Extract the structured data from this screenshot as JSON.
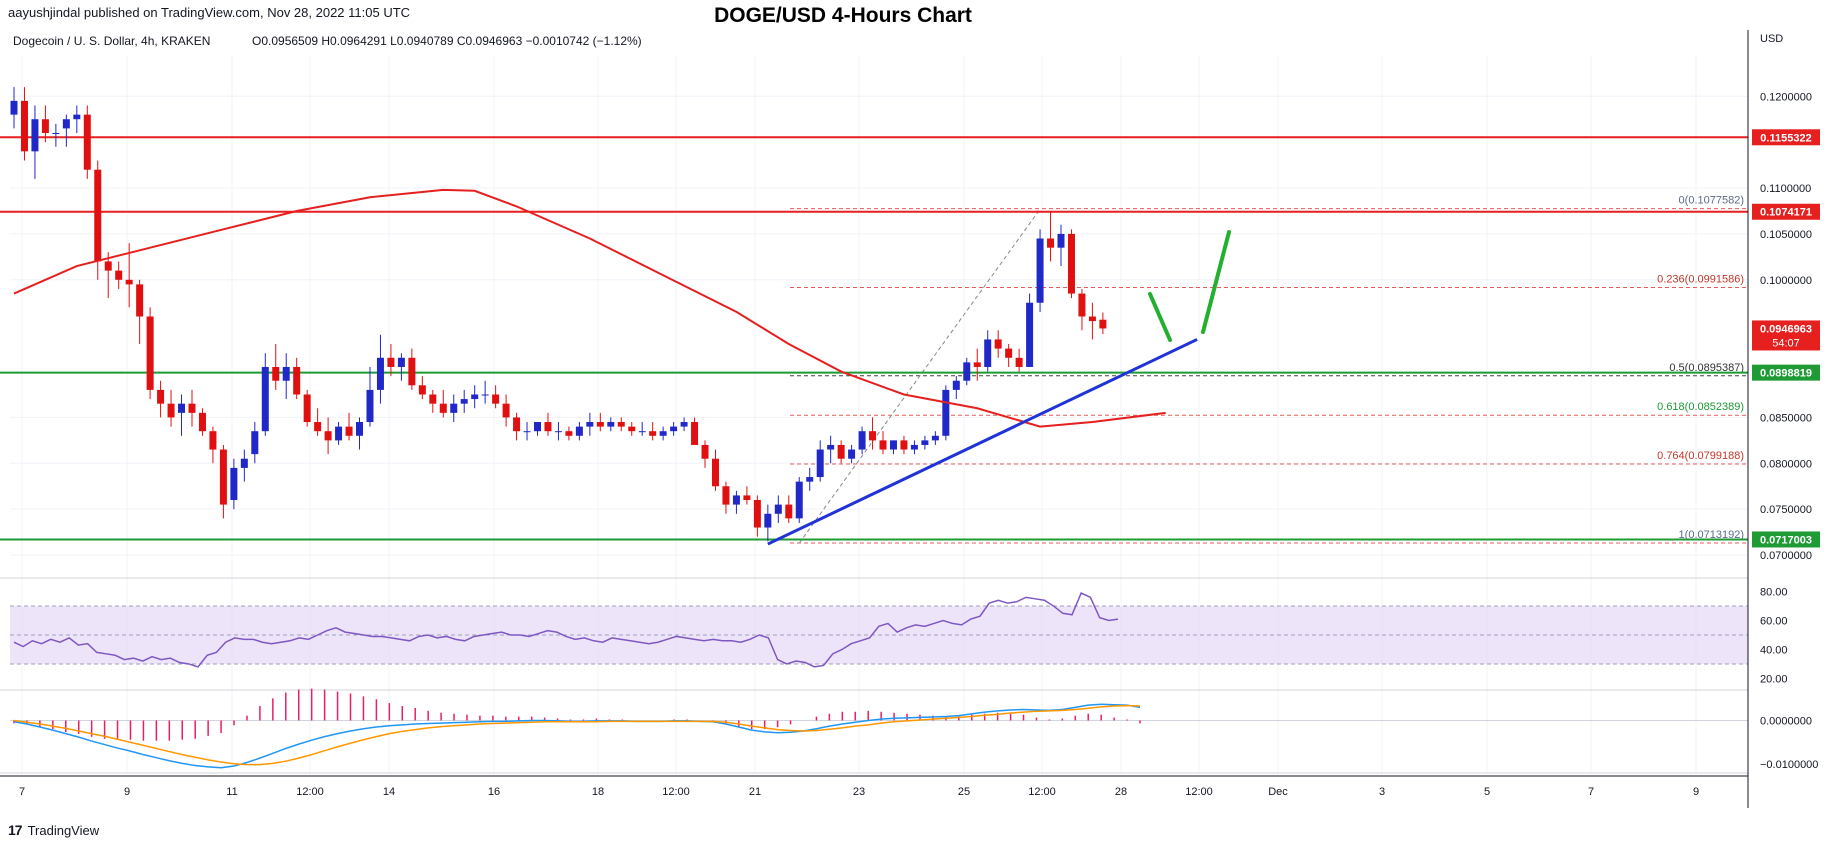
{
  "header": {
    "published_by": "aayushjindal published on TradingView.com, Nov 28, 2022 11:05 UTC",
    "chart_title": "DOGE/USD 4-Hours Chart",
    "symbol_info": "Dogecoin / U. S. Dollar, 4h, KRAKEN",
    "ohlc": "O0.0956509 H0.0964291 L0.0940789 C0.0946963 −0.0010742 (−1.12%)"
  },
  "footer": {
    "brand": "TradingView"
  },
  "colors": {
    "up": "#2028c8",
    "down": "#e01010",
    "sma": "#e61f1f",
    "trend": "#1f33d6",
    "support": "#1e9b35",
    "resistance": "#e61f1f",
    "rsi_band": "#e7d9f7",
    "rsi_line": "#7e57c2",
    "macd_line": "#2196f3",
    "signal_line": "#ff9800",
    "hist": "#e91e63",
    "label_red": "#e61f1f",
    "label_green": "#1e9b35"
  },
  "chart_data": [
    {
      "type": "candlestick",
      "currency": "USD",
      "y_ticks": [
        "0.1200000",
        "0.1100000",
        "0.1050000",
        "0.1000000",
        "0.0850000",
        "0.0800000",
        "0.0750000",
        "0.0700000"
      ],
      "ylim": [
        0.0675,
        0.1245
      ],
      "x_ticks": [
        "7",
        "9",
        "11",
        "12:00",
        "14",
        "16",
        "18",
        "12:00",
        "21",
        "23",
        "25",
        "12:00",
        "28",
        "12:00",
        "Dec",
        "3",
        "5",
        "7",
        "9"
      ],
      "candles": [
        [
          0.118,
          0.121,
          0.1165,
          0.1195
        ],
        [
          0.1195,
          0.121,
          0.113,
          0.114
        ],
        [
          0.114,
          0.119,
          0.111,
          0.1175
        ],
        [
          0.1175,
          0.119,
          0.115,
          0.116
        ],
        [
          0.116,
          0.117,
          0.1145,
          0.116
        ],
        [
          0.1165,
          0.118,
          0.1145,
          0.1175
        ],
        [
          0.1175,
          0.119,
          0.116,
          0.118
        ],
        [
          0.118,
          0.119,
          0.111,
          0.112
        ],
        [
          0.112,
          0.113,
          0.1,
          0.102
        ],
        [
          0.102,
          0.103,
          0.098,
          0.101
        ],
        [
          0.101,
          0.102,
          0.099,
          0.1
        ],
        [
          0.1,
          0.104,
          0.097,
          0.0995
        ],
        [
          0.0995,
          0.1,
          0.093,
          0.096
        ],
        [
          0.096,
          0.097,
          0.087,
          0.088
        ],
        [
          0.088,
          0.089,
          0.085,
          0.0865
        ],
        [
          0.0865,
          0.088,
          0.084,
          0.085
        ],
        [
          0.0855,
          0.0875,
          0.083,
          0.0865
        ],
        [
          0.0865,
          0.088,
          0.084,
          0.0855
        ],
        [
          0.0855,
          0.086,
          0.083,
          0.0835
        ],
        [
          0.0835,
          0.084,
          0.08,
          0.0815
        ],
        [
          0.0815,
          0.082,
          0.074,
          0.0755
        ],
        [
          0.076,
          0.0805,
          0.075,
          0.0795
        ],
        [
          0.0795,
          0.0815,
          0.078,
          0.0805
        ],
        [
          0.081,
          0.0845,
          0.08,
          0.0835
        ],
        [
          0.0835,
          0.092,
          0.083,
          0.0905
        ],
        [
          0.0905,
          0.093,
          0.088,
          0.089
        ],
        [
          0.089,
          0.092,
          0.087,
          0.0905
        ],
        [
          0.0905,
          0.0915,
          0.087,
          0.0875
        ],
        [
          0.0875,
          0.088,
          0.084,
          0.0845
        ],
        [
          0.0845,
          0.086,
          0.083,
          0.0835
        ],
        [
          0.0835,
          0.085,
          0.081,
          0.0825
        ],
        [
          0.0825,
          0.0845,
          0.082,
          0.084
        ],
        [
          0.084,
          0.0855,
          0.0825,
          0.083
        ],
        [
          0.083,
          0.085,
          0.0815,
          0.0845
        ],
        [
          0.0845,
          0.0905,
          0.084,
          0.088
        ],
        [
          0.088,
          0.094,
          0.0865,
          0.0915
        ],
        [
          0.0915,
          0.093,
          0.0895,
          0.0905
        ],
        [
          0.0905,
          0.092,
          0.089,
          0.0915
        ],
        [
          0.0915,
          0.0925,
          0.088,
          0.0885
        ],
        [
          0.0885,
          0.0895,
          0.087,
          0.0875
        ],
        [
          0.0875,
          0.088,
          0.0855,
          0.0865
        ],
        [
          0.0865,
          0.088,
          0.085,
          0.0855
        ],
        [
          0.0855,
          0.0875,
          0.0845,
          0.0865
        ],
        [
          0.0865,
          0.088,
          0.0855,
          0.087
        ],
        [
          0.087,
          0.0885,
          0.086,
          0.0875
        ],
        [
          0.0875,
          0.089,
          0.0865,
          0.0875
        ],
        [
          0.0875,
          0.0885,
          0.086,
          0.0865
        ],
        [
          0.0865,
          0.0875,
          0.084,
          0.085
        ],
        [
          0.085,
          0.0855,
          0.0825,
          0.0835
        ],
        [
          0.0835,
          0.0845,
          0.0825,
          0.0835
        ],
        [
          0.0835,
          0.0845,
          0.083,
          0.0845
        ],
        [
          0.0845,
          0.0855,
          0.083,
          0.0835
        ],
        [
          0.0835,
          0.0845,
          0.0825,
          0.0835
        ],
        [
          0.0835,
          0.084,
          0.0825,
          0.083
        ],
        [
          0.083,
          0.0845,
          0.0825,
          0.084
        ],
        [
          0.084,
          0.0855,
          0.083,
          0.0845
        ],
        [
          0.0845,
          0.0855,
          0.0835,
          0.084
        ],
        [
          0.084,
          0.085,
          0.0835,
          0.0845
        ],
        [
          0.0845,
          0.085,
          0.0835,
          0.084
        ],
        [
          0.084,
          0.0845,
          0.083,
          0.0835
        ],
        [
          0.0835,
          0.0845,
          0.083,
          0.0835
        ],
        [
          0.0835,
          0.0845,
          0.0825,
          0.083
        ],
        [
          0.083,
          0.084,
          0.0825,
          0.0835
        ],
        [
          0.0835,
          0.0845,
          0.083,
          0.084
        ],
        [
          0.084,
          0.085,
          0.0835,
          0.0845
        ],
        [
          0.0845,
          0.085,
          0.0825,
          0.082
        ],
        [
          0.082,
          0.0825,
          0.0795,
          0.0805
        ],
        [
          0.0805,
          0.0815,
          0.077,
          0.0775
        ],
        [
          0.0775,
          0.078,
          0.0745,
          0.0755
        ],
        [
          0.0755,
          0.077,
          0.0745,
          0.0765
        ],
        [
          0.0765,
          0.0775,
          0.0755,
          0.076
        ],
        [
          0.076,
          0.0765,
          0.072,
          0.073
        ],
        [
          0.073,
          0.0755,
          0.0715,
          0.0745
        ],
        [
          0.0745,
          0.0765,
          0.0735,
          0.0755
        ],
        [
          0.0755,
          0.0765,
          0.0735,
          0.074
        ],
        [
          0.074,
          0.0785,
          0.0735,
          0.078
        ],
        [
          0.078,
          0.0795,
          0.077,
          0.0785
        ],
        [
          0.0785,
          0.0825,
          0.078,
          0.0815
        ],
        [
          0.0815,
          0.083,
          0.08,
          0.082
        ],
        [
          0.082,
          0.0825,
          0.08,
          0.0805
        ],
        [
          0.0805,
          0.082,
          0.08,
          0.0815
        ],
        [
          0.0815,
          0.084,
          0.081,
          0.0835
        ],
        [
          0.0835,
          0.085,
          0.0815,
          0.0825
        ],
        [
          0.0825,
          0.0835,
          0.081,
          0.0815
        ],
        [
          0.0815,
          0.0825,
          0.081,
          0.0825
        ],
        [
          0.0825,
          0.083,
          0.081,
          0.0815
        ],
        [
          0.0815,
          0.0825,
          0.081,
          0.082
        ],
        [
          0.082,
          0.083,
          0.0815,
          0.0825
        ],
        [
          0.0825,
          0.0835,
          0.082,
          0.083
        ],
        [
          0.083,
          0.0885,
          0.0825,
          0.088
        ],
        [
          0.088,
          0.0895,
          0.087,
          0.089
        ],
        [
          0.089,
          0.0915,
          0.0885,
          0.091
        ],
        [
          0.091,
          0.0925,
          0.089,
          0.0905
        ],
        [
          0.0905,
          0.0945,
          0.09,
          0.0935
        ],
        [
          0.0935,
          0.0945,
          0.0915,
          0.0925
        ],
        [
          0.0925,
          0.093,
          0.0905,
          0.0915
        ],
        [
          0.0915,
          0.0925,
          0.09,
          0.0905
        ],
        [
          0.0905,
          0.0985,
          0.0905,
          0.0975
        ],
        [
          0.0975,
          0.1055,
          0.0965,
          0.1045
        ],
        [
          0.1045,
          0.1075,
          0.102,
          0.1035
        ],
        [
          0.1035,
          0.106,
          0.1015,
          0.105
        ],
        [
          0.105,
          0.1055,
          0.098,
          0.0985
        ],
        [
          0.0985,
          0.099,
          0.0945,
          0.096
        ],
        [
          0.096,
          0.0975,
          0.0935,
          0.0955
        ],
        [
          0.0956509,
          0.0964291,
          0.0940789,
          0.0946963
        ]
      ],
      "sma": [
        [
          0,
          0.0985
        ],
        [
          6,
          0.1015
        ],
        [
          13,
          0.1035
        ],
        [
          20,
          0.1055
        ],
        [
          27,
          0.1075
        ],
        [
          34,
          0.109
        ],
        [
          41,
          0.1098
        ],
        [
          44,
          0.1097
        ],
        [
          48,
          0.108
        ],
        [
          55,
          0.1045
        ],
        [
          62,
          0.1005
        ],
        [
          69,
          0.0965
        ],
        [
          74,
          0.093
        ],
        [
          79,
          0.09
        ],
        [
          85,
          0.0875
        ],
        [
          92,
          0.086
        ],
        [
          98,
          0.084
        ],
        [
          103,
          0.0845
        ],
        [
          110,
          0.0855
        ]
      ],
      "horizontal_lines": [
        {
          "name": "resistance-1",
          "price": 0.1155322,
          "label": "0.1155322",
          "color": "red"
        },
        {
          "name": "resistance-2",
          "price": 0.1074171,
          "label": "0.1074171",
          "color": "red"
        },
        {
          "name": "support-1",
          "price": 0.0898819,
          "label": "0.0898819",
          "color": "green"
        },
        {
          "name": "support-2",
          "price": 0.0717003,
          "label": "0.0717003",
          "color": "green"
        }
      ],
      "fibonacci": [
        {
          "label": "0(0.1077582)",
          "price": 0.1077582
        },
        {
          "label": "0.236(0.0991586)",
          "price": 0.0991586
        },
        {
          "label": "0.5(0.0895387)",
          "price": 0.0895387
        },
        {
          "label": "0.618(0.0852389)",
          "price": 0.0852389
        },
        {
          "label": "0.764(0.0799188)",
          "price": 0.0799188
        },
        {
          "label": "1(0.0713192)",
          "price": 0.0713192
        }
      ],
      "trendline": [
        [
          72,
          0.0712
        ],
        [
          113,
          0.0935
        ]
      ],
      "current_price": {
        "label": "0.0946963",
        "countdown": "54:07",
        "price": 0.0946963
      }
    },
    {
      "type": "line",
      "name": "RSI",
      "y_ticks": [
        "80.00",
        "60.00",
        "40.00",
        "20.00"
      ],
      "ylim": [
        12,
        88
      ],
      "band": [
        30,
        70
      ],
      "values": [
        45,
        42,
        46,
        44,
        47,
        45,
        48,
        43,
        44,
        38,
        37,
        36,
        33,
        34,
        32,
        35,
        33,
        34,
        31,
        30,
        28,
        36,
        38,
        45,
        48,
        47,
        47,
        45,
        44,
        45,
        46,
        48,
        47,
        50,
        53,
        55,
        52,
        51,
        50,
        49,
        49,
        48,
        47,
        46,
        49,
        50,
        48,
        49,
        47,
        46,
        49,
        50,
        51,
        52,
        50,
        50,
        49,
        51,
        53,
        52,
        49,
        47,
        48,
        46,
        45,
        48,
        47,
        46,
        45,
        44,
        45,
        47,
        49,
        48,
        47,
        46,
        47,
        46,
        46,
        45,
        47,
        50,
        48,
        33,
        30,
        32,
        31,
        28,
        29,
        37,
        40,
        44,
        46,
        48,
        56,
        58,
        52,
        55,
        57,
        56,
        58,
        60,
        58,
        57,
        61,
        63,
        72,
        74,
        72,
        73,
        76,
        75,
        74,
        70,
        65,
        64,
        79,
        76,
        62,
        60,
        61
      ]
    },
    {
      "type": "line",
      "name": "MACD",
      "y_ticks": [
        "0.0000000",
        "-0.0100000"
      ],
      "ylim": [
        -0.012,
        0.0065
      ],
      "macd": [
        -0.0003,
        -0.0008,
        -0.0015,
        -0.0022,
        -0.003,
        -0.0038,
        -0.0047,
        -0.0055,
        -0.0063,
        -0.007,
        -0.0078,
        -0.0085,
        -0.0092,
        -0.0098,
        -0.0103,
        -0.0106,
        -0.0108,
        -0.0104,
        -0.0096,
        -0.0086,
        -0.0075,
        -0.0064,
        -0.0054,
        -0.0045,
        -0.0037,
        -0.003,
        -0.0024,
        -0.0019,
        -0.0015,
        -0.0012,
        -0.001,
        -0.0008,
        -0.0007,
        -0.0006,
        -0.0005,
        -0.0004,
        -0.0003,
        -0.0002,
        -0.0002,
        -0.0001,
        0,
        0,
        -0.0001,
        -0.0002,
        -0.0002,
        -0.0001,
        -0.0001,
        -0.0001,
        -0.0002,
        -0.0002,
        -0.0002,
        -0.0001,
        -0.0001,
        -0.0002,
        -0.0003,
        -0.0008,
        -0.0015,
        -0.0022,
        -0.0026,
        -0.0028,
        -0.0027,
        -0.0024,
        -0.0019,
        -0.0013,
        -0.0008,
        -0.0004,
        0,
        0.0003,
        0.0005,
        0.0006,
        0.0007,
        0.0008,
        0.0009,
        0.0011,
        0.0015,
        0.0019,
        0.0022,
        0.0024,
        0.0025,
        0.0024,
        0.0023,
        0.0025,
        0.003,
        0.0035,
        0.0037,
        0.0036,
        0.0035,
        0.003
      ],
      "signal": [
        0,
        -0.0004,
        -0.0008,
        -0.0013,
        -0.0018,
        -0.0024,
        -0.003,
        -0.0036,
        -0.0043,
        -0.005,
        -0.0057,
        -0.0064,
        -0.0071,
        -0.0078,
        -0.0084,
        -0.009,
        -0.0095,
        -0.0099,
        -0.0101,
        -0.0101,
        -0.0098,
        -0.0093,
        -0.0086,
        -0.0078,
        -0.0069,
        -0.006,
        -0.0052,
        -0.0044,
        -0.0037,
        -0.003,
        -0.0025,
        -0.0021,
        -0.0017,
        -0.0014,
        -0.0012,
        -0.001,
        -0.0008,
        -0.0007,
        -0.0006,
        -0.0005,
        -0.0004,
        -0.0003,
        -0.0003,
        -0.0003,
        -0.0003,
        -0.0003,
        -0.0002,
        -0.0002,
        -0.0002,
        -0.0002,
        -0.0002,
        -0.0002,
        -0.0002,
        -0.0002,
        -0.0002,
        -0.0004,
        -0.0008,
        -0.0013,
        -0.0017,
        -0.0021,
        -0.0023,
        -0.0024,
        -0.0023,
        -0.002,
        -0.0017,
        -0.0013,
        -0.001,
        -0.0006,
        -0.0003,
        -0.0001,
        0.0001,
        0.0003,
        0.0005,
        0.0007,
        0.0009,
        0.0012,
        0.0014,
        0.0017,
        0.0019,
        0.0021,
        0.0022,
        0.0023,
        0.0025,
        0.0028,
        0.0031,
        0.0033,
        0.0034,
        0.0033
      ]
    }
  ]
}
